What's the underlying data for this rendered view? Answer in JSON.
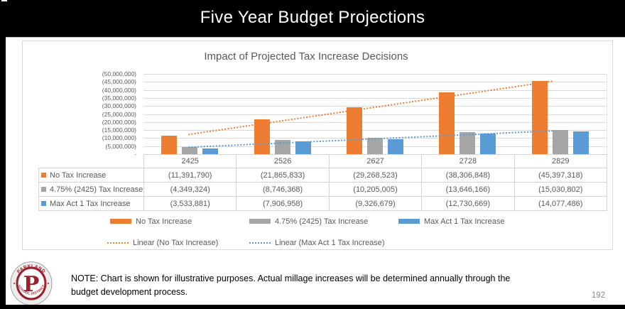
{
  "slide": {
    "title": "Five Year Budget Projections",
    "page_number": "192",
    "note": {
      "line1": "NOTE:  Chart is shown for illustrative purposes.  Actual millage increases will be determined annually through the",
      "line2": "budget development process."
    },
    "logo": {
      "top_text": "PARKLAND",
      "bottom_text": "SCHOOL DISTRICT",
      "monogram": "P",
      "accent_color": "#9C1F2E"
    }
  },
  "chart_data": {
    "type": "bar",
    "title": "Impact of Projected Tax Increase Decisions",
    "categories": [
      "2425",
      "2526",
      "2627",
      "2728",
      "2829"
    ],
    "series": [
      {
        "name": "No Tax Increase",
        "color": "#ED7D31",
        "values": [
          -11391790,
          -21865833,
          -29268523,
          -38306848,
          -45397318
        ],
        "labels": [
          "(11,391,790)",
          "(21,865,833)",
          "(29,268,523)",
          "(38,306,848)",
          "(45,397,318)"
        ]
      },
      {
        "name": "4.75% (2425) Tax Increase",
        "color": "#A5A5A5",
        "values": [
          -4349324,
          -8746368,
          -10205005,
          -13646166,
          -15030802
        ],
        "labels": [
          "(4,349,324)",
          "(8,746,368)",
          "(10,205,005)",
          "(13,646,166)",
          "(15,030,802)"
        ]
      },
      {
        "name": "Max Act 1 Tax Increase",
        "color": "#5B9BD5",
        "values": [
          -3533881,
          -7906958,
          -9326679,
          -12730669,
          -14077486
        ],
        "labels": [
          "(3,533,881)",
          "(7,906,958)",
          "(9,326,679)",
          "(12,730,669)",
          "(14,077,486)"
        ]
      }
    ],
    "trendlines": [
      {
        "name": "Linear (No Tax Increase)",
        "series_index": 0,
        "color": "#ED7D31",
        "style": "dotted"
      },
      {
        "name": "Linear (Max Act 1 Tax Increase)",
        "series_index": 2,
        "color": "#5B9BD5",
        "style": "dotted"
      }
    ],
    "y_axis": {
      "tick_labels": [
        "(50,000,000)",
        "(45,000,000)",
        "(40,000,000)",
        "(35,000,000)",
        "(30,000,000)",
        "(25,000,000)",
        "(20,000,000)",
        "(15,000,000)",
        "(10,000,000)",
        "(5,000,000)",
        "-"
      ],
      "min": 0,
      "max": -50000000,
      "format": "accounting"
    },
    "grid": true,
    "legend_position": "bottom",
    "data_table_shown": true,
    "gridline_color": "#D9D9D9",
    "text_color": "#595959"
  }
}
